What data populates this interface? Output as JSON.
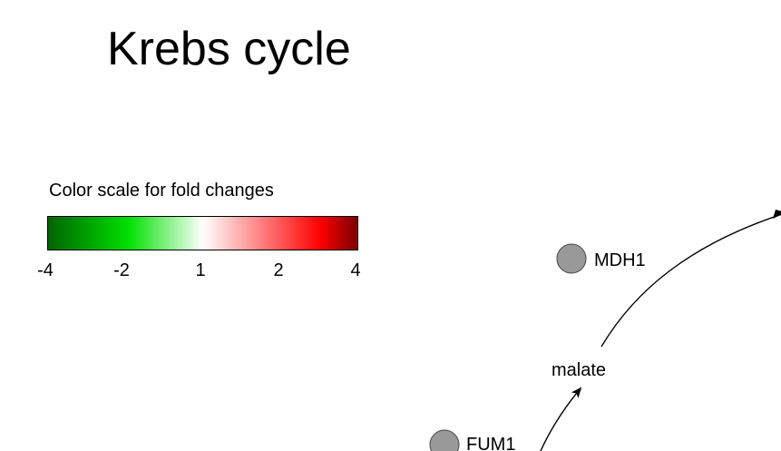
{
  "title": "Krebs cycle",
  "color_scale": {
    "label": "Color scale for fold changes",
    "ticks": [
      "-4",
      "-2",
      "1",
      "2",
      "4"
    ],
    "gradient_colors": [
      "#006400",
      "#00e000",
      "#ffffff",
      "#ff0000",
      "#7a0000"
    ]
  },
  "nodes": {
    "mdh1": {
      "label": "MDH1",
      "fill": "#999999"
    },
    "fum1": {
      "label": "FUM1",
      "fill": "#999999"
    }
  },
  "metabolites": {
    "malate": "malate"
  }
}
